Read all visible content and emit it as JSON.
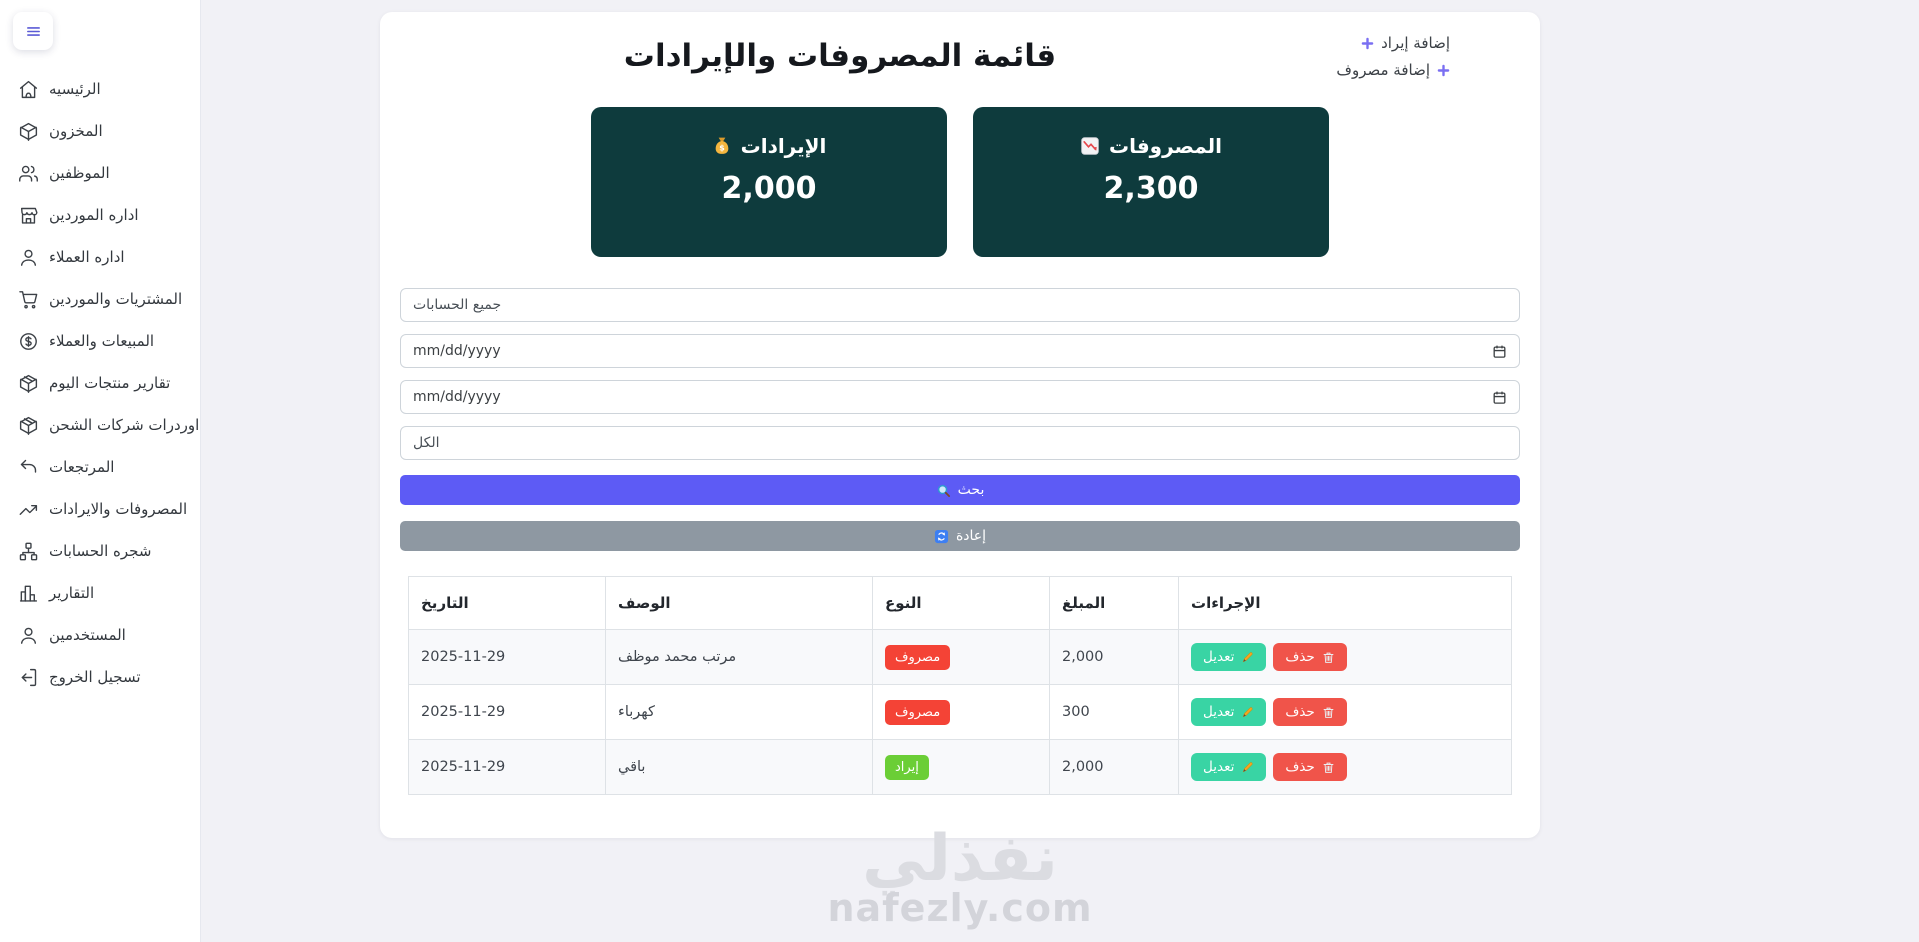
{
  "colors": {
    "background": "#f1f1f6",
    "summary_card": "#0e3b3d",
    "search_button": "#5d5bf5",
    "reset_button": "#8e98a2",
    "edit_button": "#39d4a4",
    "delete_button": "#f0544a",
    "expense_badge": "#f44336",
    "revenue_badge": "#6bce36",
    "plus_accent": "#7a6ff2"
  },
  "sidebar": {
    "items": [
      {
        "label": "الرئيسيه",
        "icon": "home"
      },
      {
        "label": "المخزون",
        "icon": "box"
      },
      {
        "label": "الموظفين",
        "icon": "users"
      },
      {
        "label": "اداره الموردين",
        "icon": "store"
      },
      {
        "label": "اداره العملاء",
        "icon": "user"
      },
      {
        "label": "المشتريات والموردين",
        "icon": "cart"
      },
      {
        "label": "المبيعات والعملاء",
        "icon": "dollar"
      },
      {
        "label": "تقارير منتجات اليوم",
        "icon": "package"
      },
      {
        "label": "اوردرات شركات الشحن",
        "icon": "shipping"
      },
      {
        "label": "المرتجعات",
        "icon": "return"
      },
      {
        "label": "المصروفات والايرادات",
        "icon": "trend"
      },
      {
        "label": "شجره الحسابات",
        "icon": "sitemap"
      },
      {
        "label": "التقارير",
        "icon": "chart"
      },
      {
        "label": "المستخدمين",
        "icon": "user"
      },
      {
        "label": "تسجيل الخروج",
        "icon": "logout"
      }
    ]
  },
  "header": {
    "title": "قائمة المصروفات والإيرادات",
    "add_revenue": "إضافة إيراد",
    "add_expense": "إضافة مصروف"
  },
  "summary": {
    "revenue": {
      "label": "الإيرادات",
      "value": "2,000",
      "icon": "money-bag"
    },
    "expense": {
      "label": "المصروفات",
      "value": "2,300",
      "icon": "chart-down"
    }
  },
  "filters": {
    "account_select": "جميع الحسابات",
    "date_from_placeholder": "mm/dd/yyyy",
    "date_to_placeholder": "mm/dd/yyyy",
    "type_select": "الكل",
    "search_label": "بحث",
    "reset_label": "إعادة"
  },
  "table": {
    "columns": [
      "التاريخ",
      "الوصف",
      "النوع",
      "المبلغ",
      "الإجراءات"
    ],
    "edit_label": "تعديل",
    "delete_label": "حذف",
    "rows": [
      {
        "date": "2025-11-29",
        "description": "مرتب محمد موظف",
        "type": "expense",
        "type_label": "مصروف",
        "amount": "2,000"
      },
      {
        "date": "2025-11-29",
        "description": "كهرباء",
        "type": "expense",
        "type_label": "مصروف",
        "amount": "300"
      },
      {
        "date": "2025-11-29",
        "description": "باقي",
        "type": "revenue",
        "type_label": "إيراد",
        "amount": "2,000"
      }
    ]
  },
  "watermark": {
    "arabic": "نفذلي",
    "domain": "nafezly.com"
  }
}
